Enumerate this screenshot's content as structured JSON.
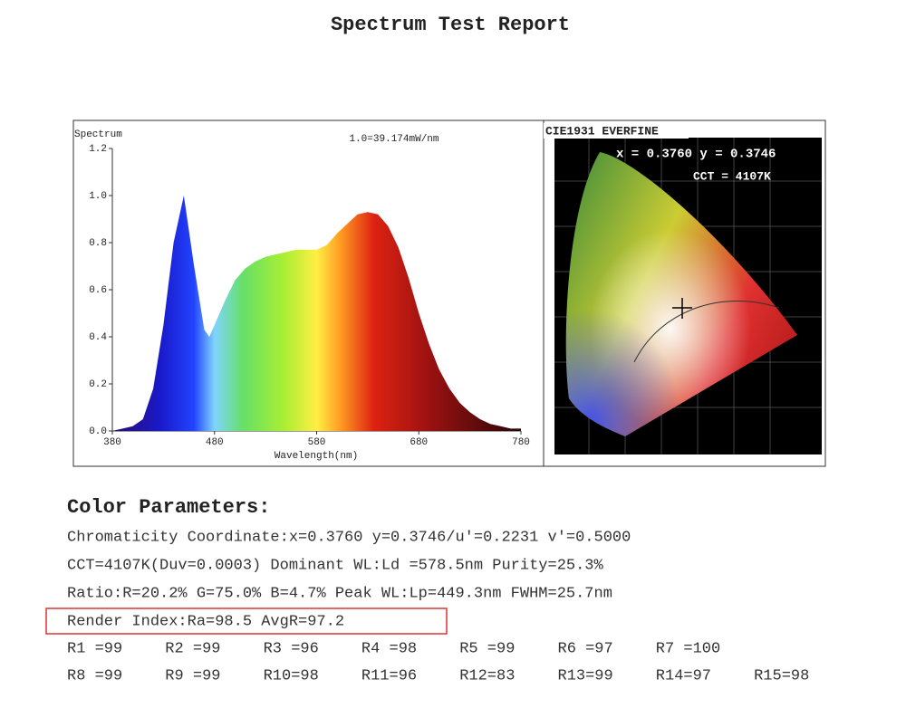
{
  "header": {
    "title": "Spectrum Test Report"
  },
  "chart_data": {
    "type": "area",
    "title": "Spectrum",
    "annotation": "1.0=39.174mW/nm",
    "x_label": "Wavelength(nm)",
    "x": [
      380,
      390,
      400,
      410,
      420,
      430,
      440,
      450,
      460,
      470,
      475,
      480,
      490,
      500,
      510,
      520,
      530,
      540,
      550,
      560,
      570,
      580,
      590,
      600,
      610,
      620,
      630,
      640,
      650,
      660,
      670,
      680,
      690,
      700,
      710,
      720,
      730,
      740,
      750,
      760,
      770,
      780
    ],
    "values": [
      0.0,
      0.01,
      0.02,
      0.05,
      0.18,
      0.45,
      0.8,
      1.0,
      0.7,
      0.43,
      0.4,
      0.45,
      0.55,
      0.64,
      0.69,
      0.72,
      0.74,
      0.75,
      0.76,
      0.77,
      0.77,
      0.77,
      0.79,
      0.84,
      0.88,
      0.92,
      0.93,
      0.92,
      0.87,
      0.78,
      0.65,
      0.5,
      0.37,
      0.26,
      0.18,
      0.12,
      0.08,
      0.05,
      0.03,
      0.02,
      0.01,
      0.01
    ],
    "xlim": [
      380,
      780
    ],
    "xticks": [
      380,
      480,
      580,
      680,
      780
    ],
    "ylim": [
      0,
      1.2
    ],
    "yticks": [
      {
        "value": 0,
        "label": "0.0"
      },
      0.2,
      0.4,
      0.6,
      0.8,
      {
        "value": 1,
        "label": "1.0"
      },
      1.2
    ]
  },
  "cie": {
    "title": "CIE1931 EVERFINE",
    "coordinates": "x = 0.3760 y = 0.3746",
    "cct": "CCT = 4107K"
  },
  "parameters": {
    "heading": "Color Parameters:",
    "lines": [
      "Chromaticity Coordinate:x=0.3760  y=0.3746/u'=0.2231 v'=0.5000",
      "CCT=4107K(Duv=0.0003) Dominant WL:Ld =578.5nm Purity=25.3%",
      "Ratio:R=20.2% G=75.0% B=4.7%  Peak WL:Lp=449.3nm  FWHM=25.7nm",
      "Render Index:Ra=98.5   AvgR=97.2"
    ],
    "r_values": [
      [
        "R1 =99",
        "R2 =99",
        "R3 =96",
        "R4 =98",
        "R5 =99",
        "R6 =97",
        "R7 =100"
      ],
      [
        "R8 =99",
        "R9 =99",
        "R10=98",
        "R11=96",
        "R12=83",
        "R13=99",
        "R14=97",
        "R15=98"
      ]
    ]
  }
}
